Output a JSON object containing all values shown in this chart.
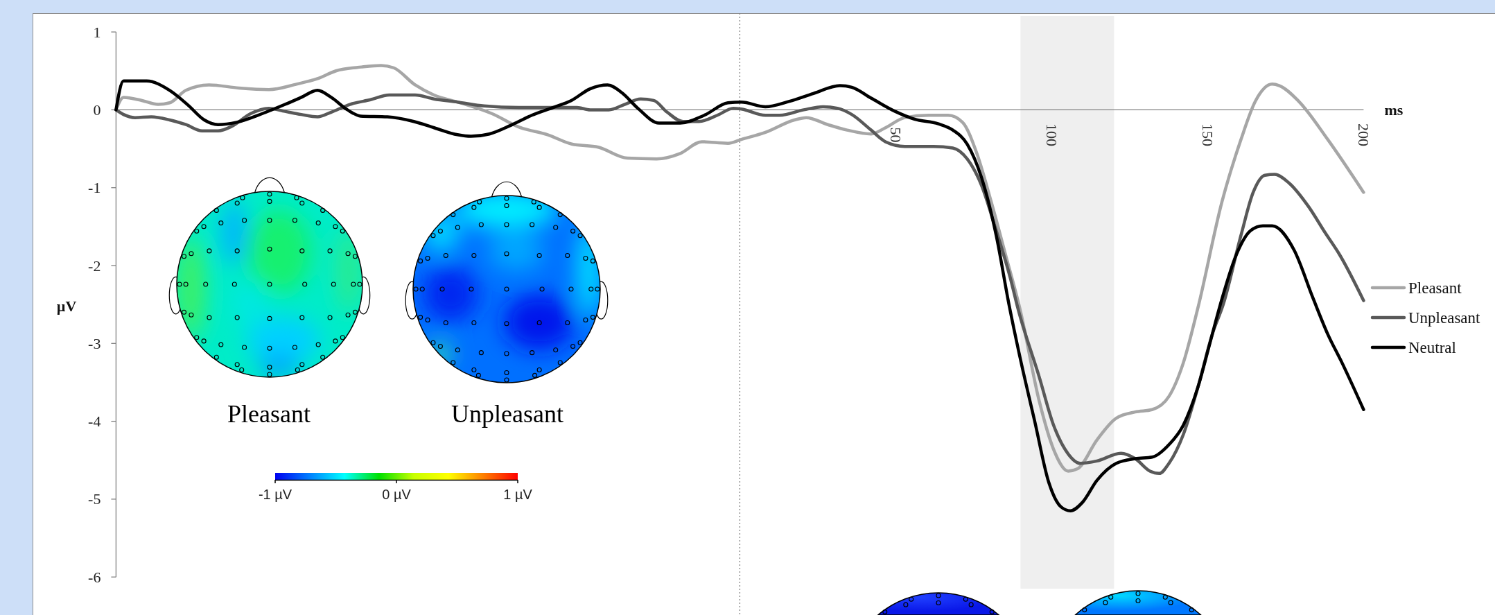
{
  "chart_data": {
    "type": "line",
    "xlabel": "ms",
    "ylabel": "µV",
    "xlim": [
      -200,
      200
    ],
    "xticks": [
      50,
      100,
      150,
      200
    ],
    "ylim": [
      -6,
      1
    ],
    "yticks": [
      -6,
      -5,
      -4,
      -3,
      -2,
      -1,
      0,
      1
    ],
    "legend": "right",
    "series": [
      {
        "name": "Pleasant",
        "color": "#a6a6a6",
        "x": [
          -200,
          -197.6,
          -191.7,
          -186.5,
          -182.8,
          -177.6,
          -170.2,
          -160.6,
          -151,
          -142.1,
          -135.4,
          -129.5,
          -121.3,
          -115,
          -111,
          -104.1,
          -98.1,
          -89.6,
          -79.4,
          -70.9,
          -61.6,
          -53.9,
          -45.4,
          -36.1,
          -26.7,
          -19.1,
          -12.2,
          -3.8,
          0.5,
          8.2,
          17.5,
          21.3,
          28.2,
          34.4,
          42.1,
          46.7,
          52.9,
          60.6,
          66.8,
          71.4,
          76,
          80.6,
          85.2,
          89.9,
          96,
          100.6,
          105.3,
          108.3,
          114.5,
          120.7,
          126.8,
          132.2,
          137.6,
          142.2,
          146.9,
          154.6,
          160.7,
          165.3,
          170.7,
          173,
          179.2,
          188.5,
          200
        ],
        "values": [
          0,
          0.16,
          0.12,
          0.07,
          0.09,
          0.25,
          0.32,
          0.28,
          0.26,
          0.33,
          0.4,
          0.5,
          0.55,
          0.57,
          0.54,
          0.32,
          0.19,
          0.09,
          -0.05,
          -0.22,
          -0.32,
          -0.44,
          -0.48,
          -0.62,
          -0.63,
          -0.56,
          -0.41,
          -0.43,
          -0.38,
          -0.29,
          -0.13,
          -0.1,
          -0.19,
          -0.26,
          -0.31,
          -0.23,
          -0.1,
          -0.07,
          -0.07,
          -0.16,
          -0.56,
          -1.18,
          -1.86,
          -2.57,
          -3.74,
          -4.36,
          -4.64,
          -4.61,
          -4.24,
          -3.96,
          -3.88,
          -3.85,
          -3.68,
          -3.25,
          -2.54,
          -1.18,
          -0.38,
          0.11,
          0.33,
          0.31,
          0.11,
          -0.38,
          -1.06
        ]
      },
      {
        "name": "Unpleasant",
        "color": "#595959",
        "x": [
          -200,
          -197.6,
          -193.9,
          -188.7,
          -182.8,
          -177.6,
          -172.4,
          -167.3,
          -162.8,
          -156.9,
          -151,
          -145.8,
          -140.6,
          -135.4,
          -131,
          -125,
          -118.4,
          -112.4,
          -104.1,
          -98.1,
          -90.5,
          -82,
          -70.9,
          -62.4,
          -52.2,
          -48,
          -42,
          -36.9,
          -31.8,
          -27.6,
          -23.3,
          -18.2,
          -13.1,
          -7.2,
          -2.1,
          0.5,
          8.2,
          12.8,
          20.5,
          26.7,
          31.3,
          35.9,
          42.1,
          46.7,
          52.9,
          62.1,
          68.3,
          72.9,
          77.5,
          82.2,
          86.8,
          89.1,
          96,
          100.6,
          105.3,
          109.1,
          114.5,
          122.2,
          126.8,
          131.5,
          134.5,
          137.6,
          142.2,
          146.9,
          151.5,
          155,
          160.7,
          164.6,
          168.4,
          171.5,
          176.1,
          182.3,
          187.7,
          192.3,
          200
        ],
        "values": [
          0,
          -0.06,
          -0.1,
          -0.09,
          -0.13,
          -0.19,
          -0.27,
          -0.27,
          -0.21,
          -0.05,
          0.02,
          -0.02,
          -0.06,
          -0.09,
          -0.03,
          0.07,
          0.13,
          0.19,
          0.19,
          0.14,
          0.1,
          0.05,
          0.03,
          0.03,
          0.03,
          0,
          0,
          0.07,
          0.14,
          0.12,
          -0.03,
          -0.15,
          -0.15,
          -0.07,
          0.02,
          0.01,
          -0.07,
          -0.07,
          0,
          0.04,
          0.02,
          -0.06,
          -0.26,
          -0.41,
          -0.47,
          -0.47,
          -0.49,
          -0.63,
          -0.97,
          -1.55,
          -2.17,
          -2.54,
          -3.43,
          -4.05,
          -4.42,
          -4.54,
          -4.51,
          -4.41,
          -4.48,
          -4.64,
          -4.67,
          -4.54,
          -4.17,
          -3.56,
          -2.88,
          -2.5,
          -1.61,
          -1.06,
          -0.84,
          -0.83,
          -0.94,
          -1.24,
          -1.58,
          -1.86,
          -2.45
        ]
      },
      {
        "name": "Neutral",
        "color": "#000000",
        "x": [
          -200,
          -197.6,
          -190.2,
          -182.8,
          -176.9,
          -171.7,
          -167.3,
          -161.3,
          -153.2,
          -145.8,
          -140.6,
          -135.4,
          -131,
          -125.8,
          -121.6,
          -113,
          -104.5,
          -98,
          -90.5,
          -86.2,
          -80.3,
          -73.5,
          -66.7,
          -59.9,
          -54,
          -48,
          -42.4,
          -37.8,
          -32.7,
          -25.9,
          -19.1,
          -11.4,
          -3.8,
          0.5,
          8.2,
          15.9,
          23.6,
          32.1,
          35.9,
          42.1,
          49.8,
          56,
          63.7,
          68.3,
          72.9,
          77.5,
          82.2,
          86.4,
          89.9,
          94.5,
          99.1,
          103,
          106,
          109.9,
          114.5,
          120.7,
          126.8,
          132.2,
          137.6,
          142.2,
          146.9,
          150.7,
          154,
          159.2,
          163.8,
          167.7,
          170.7,
          177.7,
          183.8,
          188.5,
          193.1,
          200
        ],
        "values": [
          0,
          0.37,
          0.37,
          0.25,
          0.06,
          -0.13,
          -0.19,
          -0.16,
          -0.05,
          0.07,
          0.16,
          0.25,
          0.16,
          0,
          -0.08,
          -0.09,
          -0.15,
          -0.23,
          -0.32,
          -0.34,
          -0.31,
          -0.2,
          -0.07,
          0.03,
          0.12,
          0.27,
          0.32,
          0.22,
          0.02,
          -0.17,
          -0.17,
          -0.07,
          0.09,
          0.1,
          0.04,
          0.11,
          0.21,
          0.31,
          0.29,
          0.15,
          -0.02,
          -0.12,
          -0.18,
          -0.26,
          -0.44,
          -0.87,
          -1.61,
          -2.52,
          -3.19,
          -3.99,
          -4.79,
          -5.1,
          -5.15,
          -5.04,
          -4.76,
          -4.54,
          -4.48,
          -4.46,
          -4.3,
          -4.05,
          -3.56,
          -3,
          -2.51,
          -1.86,
          -1.55,
          -1.49,
          -1.49,
          -1.8,
          -2.42,
          -2.88,
          -3.25,
          -3.85
        ]
      }
    ],
    "ref_lines": [
      {
        "axis": "x",
        "value": 0,
        "color": "#808080",
        "line_style": "dotted"
      }
    ],
    "bands": [
      {
        "axis": "x",
        "from": 90,
        "to": 120,
        "color": "#efefef"
      }
    ],
    "annotations": [
      "Pleasant",
      "Unpleasant",
      "-1 µV",
      "0 µV",
      "1 µV"
    ]
  }
}
